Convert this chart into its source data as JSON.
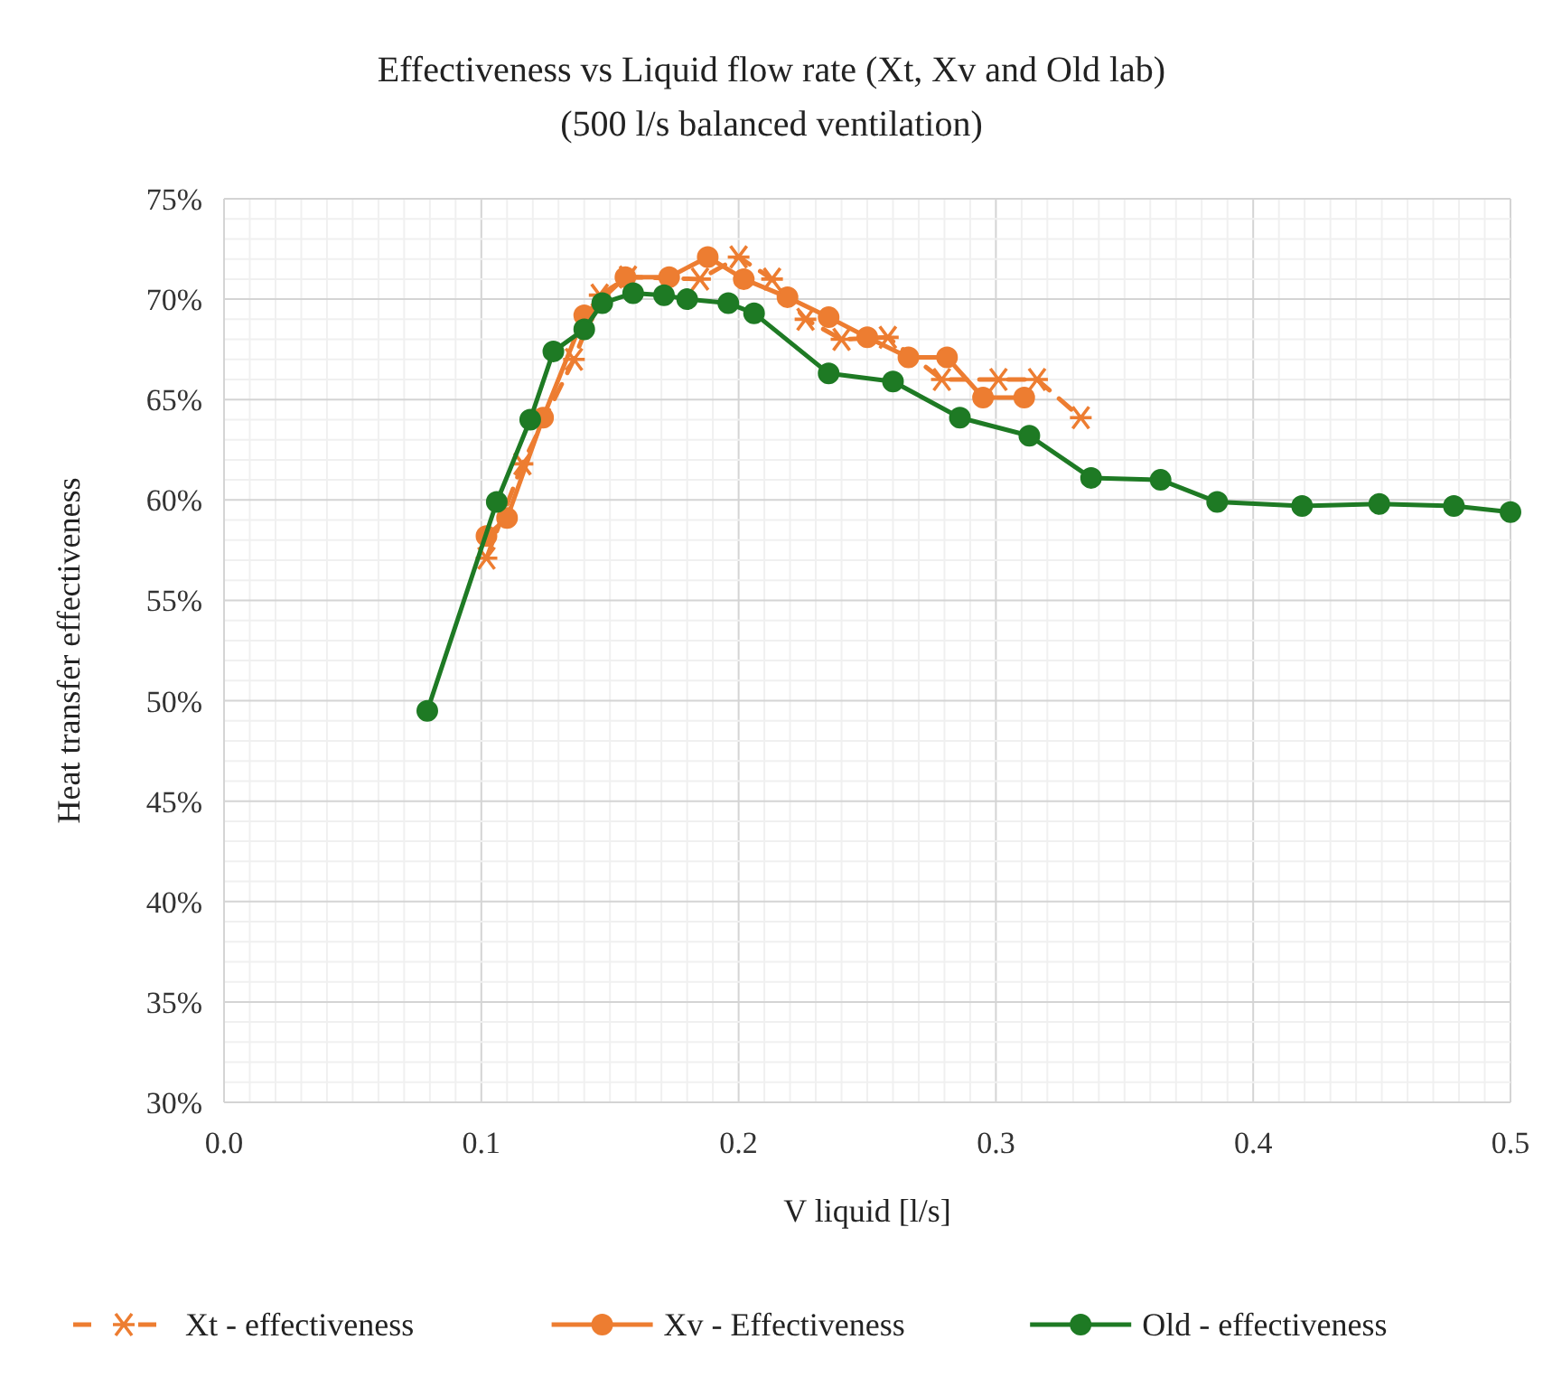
{
  "chart_data": {
    "type": "line",
    "title": "Effectiveness vs Liquid flow rate (Xt, Xv and Old lab)",
    "subtitle": "(500 l/s balanced ventilation)",
    "xlabel": "V liquid [l/s]",
    "ylabel": "Heat transfer effectiveness",
    "xlim": [
      0,
      0.5
    ],
    "ylim": [
      30,
      75
    ],
    "xticks": [
      {
        "value": 0,
        "label": "0.0"
      },
      {
        "value": 0.01,
        "label": null
      },
      {
        "value": 0.02,
        "label": null
      },
      {
        "value": 0.03,
        "label": null
      },
      {
        "value": 0.04,
        "label": null
      },
      {
        "value": 0.05,
        "label": null
      },
      {
        "value": 0.06,
        "label": null
      },
      {
        "value": 0.07,
        "label": null
      },
      {
        "value": 0.08,
        "label": null
      },
      {
        "value": 0.09,
        "label": null
      },
      0.1,
      {
        "value": 0.11,
        "label": null
      },
      {
        "value": 0.12,
        "label": null
      },
      {
        "value": 0.13,
        "label": null
      },
      {
        "value": 0.14,
        "label": null
      },
      {
        "value": 0.15,
        "label": null
      },
      {
        "value": 0.16,
        "label": null
      },
      {
        "value": 0.17,
        "label": null
      },
      {
        "value": 0.18,
        "label": null
      },
      {
        "value": 0.19,
        "label": null
      },
      0.2,
      {
        "value": 0.21,
        "label": null
      },
      {
        "value": 0.22,
        "label": null
      },
      {
        "value": 0.23,
        "label": null
      },
      {
        "value": 0.24,
        "label": null
      },
      {
        "value": 0.25,
        "label": null
      },
      {
        "value": 0.26,
        "label": null
      },
      {
        "value": 0.27,
        "label": null
      },
      {
        "value": 0.28,
        "label": null
      },
      {
        "value": 0.29,
        "label": null
      },
      0.3,
      {
        "value": 0.31,
        "label": null
      },
      {
        "value": 0.32,
        "label": null
      },
      {
        "value": 0.33,
        "label": null
      },
      {
        "value": 0.34,
        "label": null
      },
      {
        "value": 0.35,
        "label": null
      },
      {
        "value": 0.36,
        "label": null
      },
      {
        "value": 0.37,
        "label": null
      },
      {
        "value": 0.38,
        "label": null
      },
      {
        "value": 0.39,
        "label": null
      },
      0.4,
      {
        "value": 0.41,
        "label": null
      },
      {
        "value": 0.42,
        "label": null
      },
      {
        "value": 0.43,
        "label": null
      },
      {
        "value": 0.44,
        "label": null
      },
      {
        "value": 0.45,
        "label": null
      },
      {
        "value": 0.46,
        "label": null
      },
      {
        "value": 0.47,
        "label": null
      },
      {
        "value": 0.48,
        "label": null
      },
      {
        "value": 0.49,
        "label": null
      },
      0.5
    ],
    "yticks": [
      {
        "value": 30,
        "label": "30%"
      },
      {
        "value": 31,
        "label": null
      },
      {
        "value": 32,
        "label": null
      },
      {
        "value": 33,
        "label": null
      },
      {
        "value": 34,
        "label": null
      },
      {
        "value": 35,
        "label": "35%"
      },
      {
        "value": 36,
        "label": null
      },
      {
        "value": 37,
        "label": null
      },
      {
        "value": 38,
        "label": null
      },
      {
        "value": 39,
        "label": null
      },
      {
        "value": 40,
        "label": "40%"
      },
      {
        "value": 41,
        "label": null
      },
      {
        "value": 42,
        "label": null
      },
      {
        "value": 43,
        "label": null
      },
      {
        "value": 44,
        "label": null
      },
      {
        "value": 45,
        "label": "45%"
      },
      {
        "value": 46,
        "label": null
      },
      {
        "value": 47,
        "label": null
      },
      {
        "value": 48,
        "label": null
      },
      {
        "value": 49,
        "label": null
      },
      {
        "value": 50,
        "label": "50%"
      },
      {
        "value": 51,
        "label": null
      },
      {
        "value": 52,
        "label": null
      },
      {
        "value": 53,
        "label": null
      },
      {
        "value": 54,
        "label": null
      },
      {
        "value": 55,
        "label": "55%"
      },
      {
        "value": 56,
        "label": null
      },
      {
        "value": 57,
        "label": null
      },
      {
        "value": 58,
        "label": null
      },
      {
        "value": 59,
        "label": null
      },
      {
        "value": 60,
        "label": "60%"
      },
      {
        "value": 61,
        "label": null
      },
      {
        "value": 62,
        "label": null
      },
      {
        "value": 63,
        "label": null
      },
      {
        "value": 64,
        "label": null
      },
      {
        "value": 65,
        "label": "65%"
      },
      {
        "value": 66,
        "label": null
      },
      {
        "value": 67,
        "label": null
      },
      {
        "value": 68,
        "label": null
      },
      {
        "value": 69,
        "label": null
      },
      {
        "value": 70,
        "label": "70%"
      },
      {
        "value": 71,
        "label": null
      },
      {
        "value": 72,
        "label": null
      },
      {
        "value": 73,
        "label": null
      },
      {
        "value": 74,
        "label": null
      },
      {
        "value": 75,
        "label": "75%"
      }
    ],
    "grid": true,
    "legend": "bottom",
    "series": [
      {
        "name": "Xt - effectiveness",
        "color": "#ed7d31",
        "marker": "cross",
        "line_style": "dashed",
        "x": [
          0.102,
          0.116,
          0.136,
          0.146,
          0.157,
          0.185,
          0.2,
          0.213,
          0.226,
          0.24,
          0.258,
          0.279,
          0.301,
          0.316,
          0.333
        ],
        "values": [
          57.1,
          61.8,
          67.0,
          70.2,
          71.1,
          71.0,
          72.1,
          71.0,
          69.0,
          68.0,
          68.1,
          66.0,
          66.0,
          66.0,
          64.1
        ]
      },
      {
        "name": "Xv - Effectiveness",
        "color": "#ed7d31",
        "marker": "circle",
        "line_style": "solid",
        "x": [
          0.102,
          0.11,
          0.124,
          0.14,
          0.156,
          0.173,
          0.188,
          0.202,
          0.219,
          0.235,
          0.25,
          0.266,
          0.281,
          0.295,
          0.311
        ],
        "values": [
          58.2,
          59.1,
          64.1,
          69.2,
          71.1,
          71.1,
          72.1,
          71.0,
          70.1,
          69.1,
          68.1,
          67.1,
          67.1,
          65.1,
          65.1
        ]
      },
      {
        "name": "Old - effectiveness",
        "color": "#1e7a24",
        "marker": "circle",
        "line_style": "solid",
        "x": [
          0.079,
          0.106,
          0.119,
          0.128,
          0.14,
          0.147,
          0.159,
          0.171,
          0.18,
          0.196,
          0.206,
          0.235,
          0.26,
          0.286,
          0.313,
          0.337,
          0.364,
          0.386,
          0.419,
          0.449,
          0.478,
          0.5
        ],
        "values": [
          49.5,
          59.9,
          64.0,
          67.4,
          68.5,
          69.8,
          70.3,
          70.2,
          70.0,
          69.8,
          69.3,
          66.3,
          65.9,
          64.1,
          63.2,
          61.1,
          61.0,
          59.9,
          59.7,
          59.8,
          59.7,
          59.4
        ]
      }
    ]
  }
}
